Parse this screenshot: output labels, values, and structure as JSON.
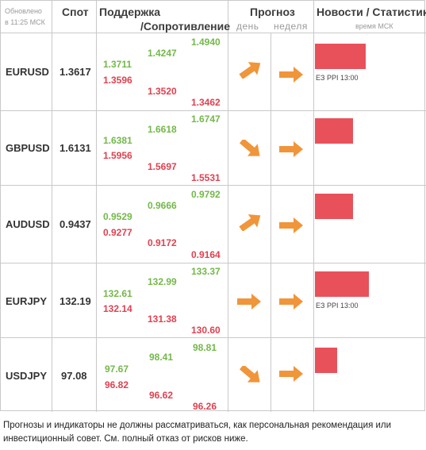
{
  "header": {
    "updated_line1": "Обновлено",
    "updated_line2": "в 11:25 МСК",
    "spot": "Спот",
    "support": "Поддержка",
    "resistance": "/Сопротивление",
    "forecast": "Прогноз",
    "day": "день",
    "week": "неделя",
    "news": "Новости / Статистика",
    "msk_time": "время МСК"
  },
  "accent_colors": {
    "green": "#74b84a",
    "red": "#e0414f",
    "arrow": "#f0953a",
    "news_bar": "#e9515a"
  },
  "rows": [
    {
      "pair": "EURUSD",
      "spot": "1.3617",
      "s1_green": "1.3711",
      "s1_red": "1.3596",
      "s2_green": "1.4247",
      "s2_red": "1.3520",
      "s3_green": "1.4940",
      "s3_red": "1.3462",
      "day_arrow": "arrow-up-right-icon",
      "week_arrow": "arrow-right-icon",
      "news_level": 0.9,
      "news_note": "EЗ PPI 13:00"
    },
    {
      "pair": "GBPUSD",
      "spot": "1.6131",
      "s1_green": "1.6381",
      "s1_red": "1.5956",
      "s2_green": "1.6618",
      "s2_red": "1.5697",
      "s3_green": "1.6747",
      "s3_red": "1.5531",
      "day_arrow": "arrow-down-right-icon",
      "week_arrow": "arrow-right-icon",
      "news_level": 0.68,
      "news_note": ""
    },
    {
      "pair": "AUDUSD",
      "spot": "0.9437",
      "s1_green": "0.9529",
      "s1_red": "0.9277",
      "s2_green": "0.9666",
      "s2_red": "0.9172",
      "s3_green": "0.9792",
      "s3_red": "0.9164",
      "day_arrow": "arrow-up-right-icon",
      "week_arrow": "arrow-right-icon",
      "news_level": 0.68,
      "news_note": ""
    },
    {
      "pair": "EURJPY",
      "spot": "132.19",
      "s1_green": "132.61",
      "s1_red": "132.14",
      "s2_green": "132.99",
      "s2_red": "131.38",
      "s3_green": "133.37",
      "s3_red": "130.60",
      "day_arrow": "arrow-right-icon",
      "week_arrow": "arrow-right-icon",
      "news_level": 0.96,
      "news_note": "EЗ PPI 13:00"
    },
    {
      "pair": "USDJPY",
      "spot": "97.08",
      "s1_green": "97.67",
      "s1_red": "96.82",
      "s2_green": "98.41",
      "s2_red": "96.62",
      "s3_green": "98.81",
      "s3_red": "96.26",
      "day_arrow": "arrow-down-right-icon",
      "week_arrow": "arrow-right-icon",
      "news_level": 0.4,
      "news_note": ""
    }
  ],
  "disclaimer": "Прогнозы и индикаторы не должны рассматриваться, как персональная рекомендация или инвестиционный совет. См. полный отказ от рисков ниже."
}
